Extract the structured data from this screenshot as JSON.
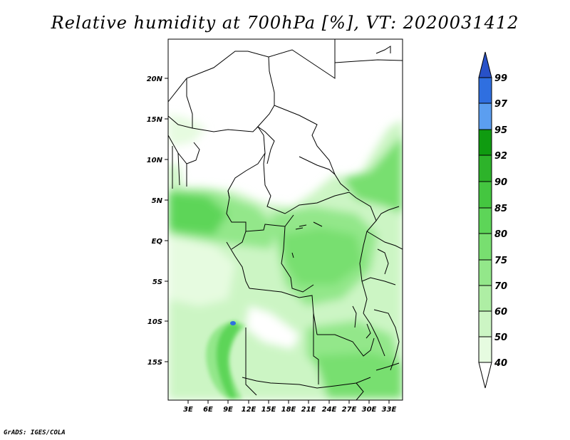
{
  "title": "Relative humidity at 700hPa [%], VT: 2020031412",
  "footer": "GrADS: IGES/COLA",
  "map": {
    "lat_labels": [
      "20N",
      "15N",
      "10N",
      "5N",
      "EQ",
      "5S",
      "10S",
      "15S"
    ],
    "lon_labels": [
      "3E",
      "6E",
      "9E",
      "12E",
      "15E",
      "18E",
      "21E",
      "24E",
      "27E",
      "30E",
      "33E"
    ]
  },
  "colorbar": {
    "labels": [
      "40",
      "50",
      "60",
      "70",
      "75",
      "80",
      "85",
      "90",
      "92",
      "95",
      "97",
      "99"
    ],
    "colors": [
      "#ffffff",
      "#e6fbe0",
      "#ccf5c4",
      "#aeeea4",
      "#93e78a",
      "#78df70",
      "#5dd558",
      "#44c640",
      "#2db32a",
      "#0f9b10",
      "#5b9ef0",
      "#2f6fe0",
      "#2851c8"
    ]
  }
}
